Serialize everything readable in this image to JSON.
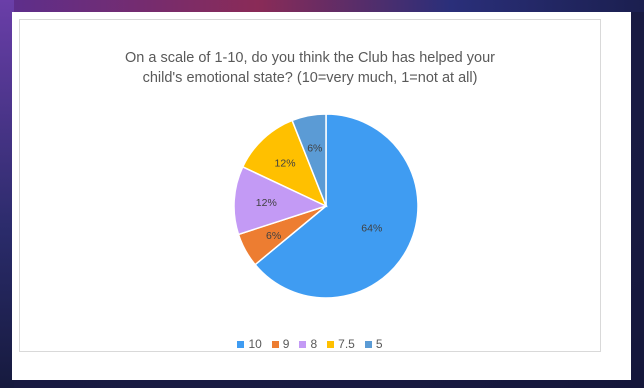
{
  "chart_data": {
    "type": "pie",
    "title_lines": [
      "On a scale of 1-10, do you think the Club has helped your",
      "child's emotional state? (10=very much, 1=not at all)"
    ],
    "categories": [
      "10",
      "9",
      "8",
      "7.5",
      "5"
    ],
    "values": [
      64,
      6,
      12,
      12,
      6
    ],
    "data_labels": [
      "64%",
      "6%",
      "12%",
      "12%",
      "6%"
    ],
    "colors": [
      "#3f9cf2",
      "#ed7d31",
      "#c39af5",
      "#ffc000",
      "#5b9bd5"
    ],
    "legend_position": "bottom",
    "start_angle_deg": 0,
    "direction": "clockwise"
  }
}
